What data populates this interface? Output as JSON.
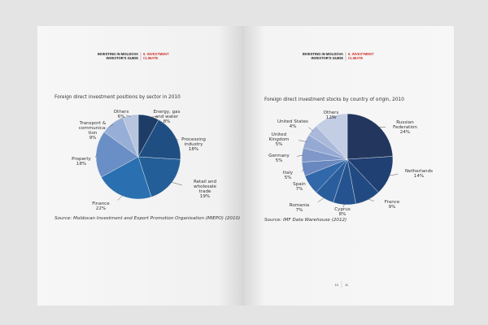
{
  "header": {
    "left": {
      "line1": "INVESTING IN MOLDOVA",
      "line2": "INVESTOR'S GUIDE",
      "section1": "6. INVESTMENT",
      "section2": "CLIMATE"
    },
    "right": {
      "line1": "INVESTING IN MOLDOVA",
      "line2": "INVESTOR'S GUIDE",
      "section1": "6. INVESTMENT",
      "section2": "CLIMATE"
    }
  },
  "page_numbers": {
    "left": "10",
    "right": "11"
  },
  "chart_data": [
    {
      "type": "pie",
      "title": "Foreign direct investment positions by sector in 2010",
      "source": "Source: Moldovan Investment and Export Promotion Organisation (MIEPO) (2010)",
      "slices": [
        {
          "label": [
            "Energy, gas",
            "and water"
          ],
          "value": 8,
          "pct": "8%",
          "color": "#1d3c66"
        },
        {
          "label": [
            "Processing",
            "industry"
          ],
          "value": 18,
          "pct": "18%",
          "color": "#1f4e82"
        },
        {
          "label": [
            "Retail and",
            "wholesale",
            "trade"
          ],
          "value": 19,
          "pct": "19%",
          "color": "#235e98"
        },
        {
          "label": [
            "Finance"
          ],
          "value": 22,
          "pct": "22%",
          "color": "#2a70b0"
        },
        {
          "label": [
            "Property"
          ],
          "value": 18,
          "pct": "18%",
          "color": "#6a8ec6"
        },
        {
          "label": [
            "Transport &",
            "communica-",
            "tion"
          ],
          "value": 9,
          "pct": "9%",
          "color": "#97afd6"
        },
        {
          "label": [
            "Others"
          ],
          "value": 6,
          "pct": "6%",
          "color": "#b7c5df"
        }
      ]
    },
    {
      "type": "pie",
      "title": "Foreign direct investment stocks by country of origin, 2010",
      "source": "Source: IMF Data Warehouse (2012)",
      "slices": [
        {
          "label": [
            "Russian",
            "Federation"
          ],
          "value": 24,
          "pct": "24%",
          "color": "#22365e"
        },
        {
          "label": [
            "Netherlands"
          ],
          "value": 14,
          "pct": "14%",
          "color": "#203f73"
        },
        {
          "label": [
            "France"
          ],
          "value": 9,
          "pct": "9%",
          "color": "#224a82"
        },
        {
          "label": [
            "Cyprus"
          ],
          "value": 8,
          "pct": "8%",
          "color": "#25538f"
        },
        {
          "label": [
            "Romania"
          ],
          "value": 7,
          "pct": "7%",
          "color": "#2a5d9c"
        },
        {
          "label": [
            "Spain"
          ],
          "value": 7,
          "pct": "7%",
          "color": "#3168a9"
        },
        {
          "label": [
            "Italy"
          ],
          "value": 5,
          "pct": "5%",
          "color": "#6a88c0"
        },
        {
          "label": [
            "Germany"
          ],
          "value": 5,
          "pct": "5%",
          "color": "#7f98c9"
        },
        {
          "label": [
            "United",
            "Kingdom"
          ],
          "value": 5,
          "pct": "5%",
          "color": "#95a9d3"
        },
        {
          "label": [
            "United States"
          ],
          "value": 4,
          "pct": "4%",
          "color": "#aab9da"
        },
        {
          "label": [
            "Others"
          ],
          "value": 12,
          "pct": "12%",
          "color": "#c3cde3"
        }
      ]
    }
  ]
}
